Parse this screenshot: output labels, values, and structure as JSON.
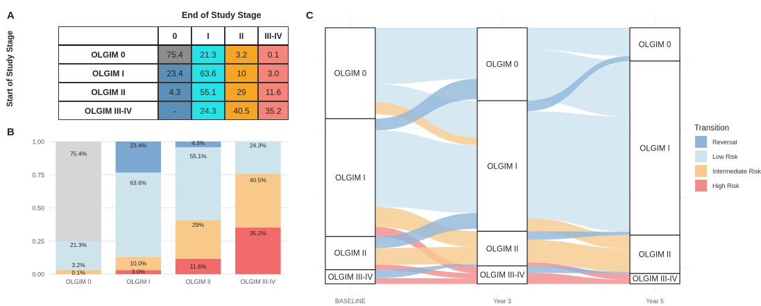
{
  "panelA": {
    "letter": "A",
    "title": "End of Study Stage",
    "ylabel": "Start of Study Stage",
    "col_headers": [
      "0",
      "I",
      "II",
      "III-IV"
    ],
    "rows": [
      {
        "label": "OLGIM 0",
        "cells": [
          "75.4",
          "21.3",
          "3.2",
          "0.1"
        ]
      },
      {
        "label": "OLGIM I",
        "cells": [
          "23.4",
          "63.6",
          "10",
          "3.0"
        ]
      },
      {
        "label": "OLGIM II",
        "cells": [
          "4.3",
          "55.1",
          "29",
          "11.6"
        ]
      },
      {
        "label": "OLGIM III-IV",
        "cells": [
          "-",
          "24.3",
          "40.5",
          "35.2"
        ]
      }
    ],
    "cell_colors": [
      [
        "#8c8c8c",
        "#24e4e8",
        "#f5a623",
        "#f5857a"
      ],
      [
        "#5b8fb8",
        "#24e4e8",
        "#f5a623",
        "#f5857a"
      ],
      [
        "#5b8fb8",
        "#24e4e8",
        "#f5a623",
        "#f5857a"
      ],
      [
        "#5b8fb8",
        "#24e4e8",
        "#f5a623",
        "#f5857a"
      ]
    ]
  },
  "chart_data": [
    {
      "type": "bar",
      "panel": "B",
      "stacked": true,
      "categories": [
        "OLGIM 0",
        "OLGIM I",
        "OLGIM II",
        "OLGIM III-IV"
      ],
      "ylim": [
        0,
        1
      ],
      "yticks": [
        "0.00",
        "0.25",
        "0.50",
        "0.75",
        "1.00"
      ],
      "grid": true,
      "series": [
        {
          "values": [
            0.001,
            0.03,
            0.116,
            0.352
          ],
          "color": "#f26a6a",
          "labels": [
            "0.1%",
            "3.0%",
            "11.6%",
            "35.2%"
          ]
        },
        {
          "values": [
            0.032,
            0.1,
            0.29,
            0.405
          ],
          "color": "#f9c98a",
          "labels": [
            "3.2%",
            "10.0%",
            "29%",
            "40.5%"
          ]
        },
        {
          "values": [
            0.213,
            0.636,
            0.551,
            0.243
          ],
          "color": "#cde4ed",
          "labels": [
            "21.3%",
            "63.6%",
            "55.1%",
            "24.3%"
          ]
        },
        {
          "values": [
            0.0,
            0.234,
            0.043,
            0.0
          ],
          "color": "#7ba7d0",
          "labels": [
            "",
            "23.4%",
            "4.3%",
            ""
          ]
        },
        {
          "values": [
            0.754,
            0.0,
            0.0,
            0.0
          ],
          "color": "#d6d6d6",
          "labels": [
            "75.4%",
            "",
            "",
            ""
          ]
        }
      ]
    },
    {
      "type": "sankey",
      "panel": "C",
      "x": [
        "BASELINE",
        "Year 3",
        "Year 5"
      ],
      "stages": [
        {
          "x": "BASELINE",
          "nodes": [
            {
              "label": "OLGIM 0",
              "share": 0.355
            },
            {
              "label": "OLGIM I",
              "share": 0.46
            },
            {
              "label": "OLGIM II",
              "share": 0.13
            },
            {
              "label": "OLGIM III-IV",
              "share": 0.055
            }
          ]
        },
        {
          "x": "Year 3",
          "nodes": [
            {
              "label": "OLGIM 0",
              "share": 0.285
            },
            {
              "label": "OLGIM I",
              "share": 0.51
            },
            {
              "label": "OLGIM II",
              "share": 0.135
            },
            {
              "label": "OLGIM III-IV",
              "share": 0.07
            }
          ]
        },
        {
          "x": "Year 5",
          "nodes": [
            {
              "label": "OLGIM 0",
              "share": 0.13
            },
            {
              "label": "OLGIM I",
              "share": 0.68
            },
            {
              "label": "OLGIM II",
              "share": 0.15
            },
            {
              "label": "OLGIM III-IV",
              "share": 0.04
            }
          ]
        }
      ],
      "legend": {
        "title": "Transition",
        "position": "right",
        "entries": [
          {
            "label": "Reversal",
            "color": "#8fb6d9"
          },
          {
            "label": "Low Risk",
            "color": "#cfe4ee"
          },
          {
            "label": "Intermediate Risk",
            "color": "#f8c98c"
          },
          {
            "label": "High Risk",
            "color": "#f28a8a"
          }
        ]
      }
    }
  ],
  "panel_letters": {
    "b": "B",
    "c": "C"
  }
}
